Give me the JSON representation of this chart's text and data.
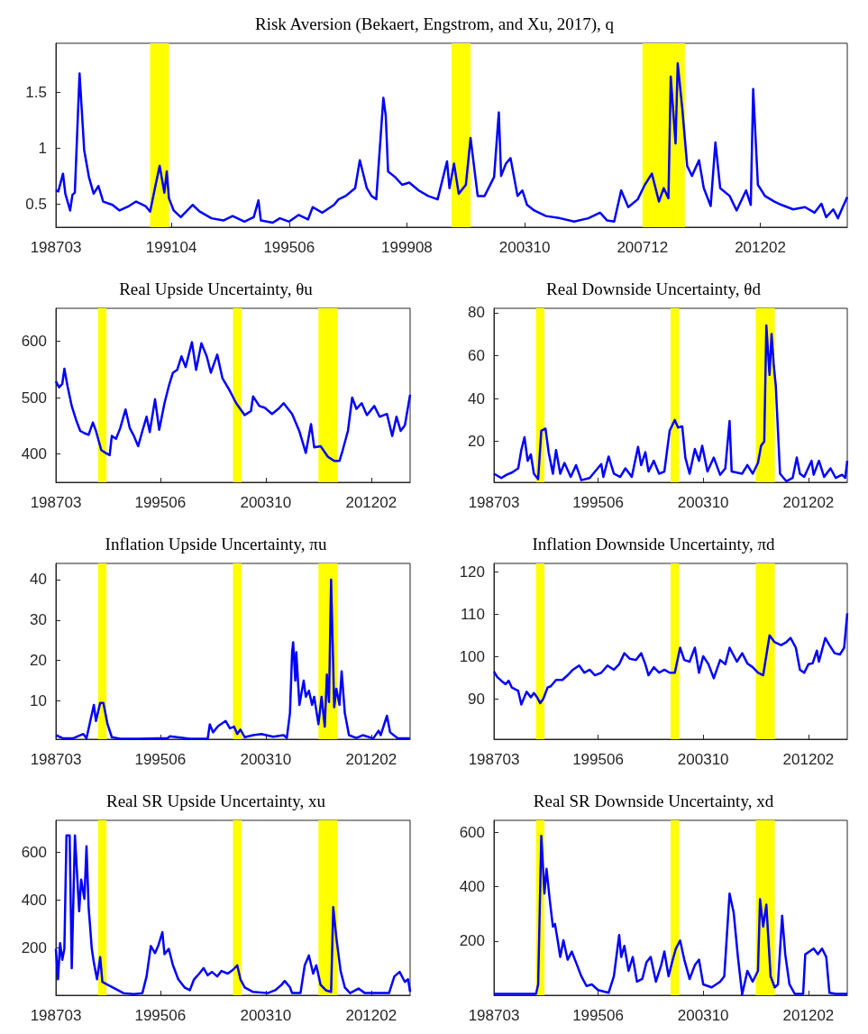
{
  "chart_data": [
    {
      "type": "line",
      "title": "Risk Aversion (Bekaert, Engstrom, and Xu, 2017), q",
      "color": "#0000ff",
      "x": [
        "1987-03",
        "1987-04",
        "1987-06",
        "1987-07",
        "1987-09",
        "1987-10",
        "1987-11",
        "1988-01",
        "1988-03",
        "1988-05",
        "1988-07",
        "1988-09",
        "1988-11",
        "1989-03",
        "1989-06",
        "1989-10",
        "1990-01",
        "1990-05",
        "1990-07",
        "1990-09",
        "1990-11",
        "1991-01",
        "1991-02",
        "1991-03",
        "1991-05",
        "1991-08",
        "1992-01",
        "1992-04",
        "1992-09",
        "1993-02",
        "1993-06",
        "1993-11",
        "1994-03",
        "1994-05",
        "1994-06",
        "1994-11",
        "1995-02",
        "1995-06",
        "1995-10",
        "1996-02",
        "1996-04",
        "1996-08",
        "1997-01",
        "1997-03",
        "1997-06",
        "1997-10",
        "1997-12",
        "1998-03",
        "1998-05",
        "1998-07",
        "1998-10",
        "1998-11",
        "1998-12",
        "1999-03",
        "1999-06",
        "1999-09",
        "2000-01",
        "2000-05",
        "2000-09",
        "2001-01",
        "2001-02",
        "2001-04",
        "2001-06",
        "2001-09",
        "2001-11",
        "2002-02",
        "2002-05",
        "2002-09",
        "2002-11",
        "2002-12",
        "2003-02",
        "2003-04",
        "2003-07",
        "2003-09",
        "2003-11",
        "2004-02",
        "2004-07",
        "2005-01",
        "2005-07",
        "2006-01",
        "2006-06",
        "2006-09",
        "2006-12",
        "2007-03",
        "2007-06",
        "2007-10",
        "2008-01",
        "2008-04",
        "2008-07",
        "2008-09",
        "2008-11",
        "2008-12",
        "2009-02",
        "2009-03",
        "2009-05",
        "2009-07",
        "2009-09",
        "2009-12",
        "2010-02",
        "2010-05",
        "2010-07",
        "2010-09",
        "2011-01",
        "2011-04",
        "2011-08",
        "2011-10",
        "2011-11",
        "2012-01",
        "2012-04",
        "2012-08",
        "2012-11",
        "2013-04",
        "2013-09",
        "2014-01",
        "2014-04",
        "2014-06",
        "2014-09",
        "2014-11",
        "2015-01",
        "2015-03"
      ],
      "values": [
        0.62,
        0.61,
        0.77,
        0.59,
        0.44,
        0.58,
        0.6,
        1.67,
        0.98,
        0.74,
        0.59,
        0.66,
        0.52,
        0.49,
        0.44,
        0.48,
        0.52,
        0.48,
        0.43,
        0.64,
        0.84,
        0.6,
        0.79,
        0.55,
        0.44,
        0.38,
        0.49,
        0.43,
        0.37,
        0.35,
        0.39,
        0.34,
        0.38,
        0.53,
        0.35,
        0.33,
        0.37,
        0.34,
        0.4,
        0.36,
        0.47,
        0.42,
        0.49,
        0.54,
        0.57,
        0.64,
        0.89,
        0.64,
        0.57,
        0.54,
        1.45,
        1.29,
        0.79,
        0.74,
        0.67,
        0.69,
        0.62,
        0.57,
        0.54,
        0.88,
        0.64,
        0.86,
        0.59,
        0.67,
        1.09,
        0.57,
        0.57,
        0.74,
        1.32,
        0.75,
        0.86,
        0.91,
        0.57,
        0.62,
        0.49,
        0.44,
        0.39,
        0.37,
        0.34,
        0.37,
        0.42,
        0.35,
        0.34,
        0.62,
        0.47,
        0.54,
        0.67,
        0.77,
        0.52,
        0.64,
        0.55,
        1.64,
        1.04,
        1.76,
        1.34,
        0.84,
        0.75,
        0.89,
        0.64,
        0.48,
        1.05,
        0.64,
        0.57,
        0.44,
        0.62,
        0.49,
        1.53,
        0.67,
        0.57,
        0.52,
        0.49,
        0.45,
        0.47,
        0.42,
        0.5,
        0.38,
        0.45,
        0.37,
        0.47,
        0.56
      ],
      "xlim": [
        "1987-03",
        "2015-03"
      ],
      "xticks": [
        {
          "value": "1987-03",
          "label": "198703"
        },
        {
          "value": "1991-04",
          "label": "199104"
        },
        {
          "value": "1995-06",
          "label": "199506"
        },
        {
          "value": "1999-08",
          "label": "199908"
        },
        {
          "value": "2003-10",
          "label": "200310"
        },
        {
          "value": "2007-12",
          "label": "200712"
        },
        {
          "value": "2012-02",
          "label": "201202"
        }
      ],
      "ylim": [
        0.29,
        1.94
      ],
      "yticks": [
        0.5,
        1,
        1.5
      ],
      "bands": [
        {
          "axis": "x",
          "from": "1990-07",
          "to": "1991-03",
          "color": "#ffff00"
        },
        {
          "axis": "x",
          "from": "2001-03",
          "to": "2001-11",
          "color": "#ffff00"
        },
        {
          "axis": "x",
          "from": "2007-12",
          "to": "2009-06",
          "color": "#ffff00"
        }
      ]
    },
    {
      "type": "line",
      "title": "Real Upside Uncertainty, θu",
      "color": "#0000ff",
      "x": [
        "1987-03",
        "1987-06",
        "1987-09",
        "1987-11",
        "1988-02",
        "1988-06",
        "1988-10",
        "1989-02",
        "1989-06",
        "1989-10",
        "1990-02",
        "1990-05",
        "1990-10",
        "1991-02",
        "1991-06",
        "1991-08",
        "1991-12",
        "1992-04",
        "1992-09",
        "1993-01",
        "1993-05",
        "1993-09",
        "1994-01",
        "1994-05",
        "1994-08",
        "1995-01",
        "1995-05",
        "1995-10",
        "1996-02",
        "1996-06",
        "1996-10",
        "1997-02",
        "1997-06",
        "1997-12",
        "1998-04",
        "1998-09",
        "1999-02",
        "1999-06",
        "1999-12",
        "2000-05",
        "2000-11",
        "2001-06",
        "2002-02",
        "2002-08",
        "2002-10",
        "2003-04",
        "2003-09",
        "2004-04",
        "2004-10",
        "2005-03",
        "2005-11",
        "2006-06",
        "2006-12",
        "2007-05",
        "2007-08",
        "2008-02",
        "2008-09",
        "2009-03",
        "2009-08",
        "2009-11",
        "2010-04",
        "2010-08",
        "2010-12",
        "2011-05",
        "2011-10",
        "2012-05",
        "2012-10",
        "2013-05",
        "2013-10",
        "2014-02",
        "2014-06",
        "2014-10",
        "2015-03"
      ],
      "values": [
        529,
        518,
        524,
        551,
        520,
        485,
        461,
        441,
        437,
        434,
        456,
        441,
        407,
        402,
        398,
        432,
        427,
        446,
        479,
        446,
        432,
        414,
        441,
        466,
        439,
        497,
        443,
        490,
        520,
        544,
        549,
        573,
        554,
        598,
        549,
        596,
        573,
        544,
        576,
        534,
        515,
        490,
        469,
        476,
        502,
        485,
        482,
        471,
        480,
        490,
        471,
        440,
        402,
        453,
        412,
        414,
        395,
        388,
        388,
        407,
        441,
        500,
        480,
        490,
        469,
        485,
        466,
        471,
        432,
        466,
        441,
        451,
        505
      ],
      "xlim": [
        "1987-03",
        "2015-03"
      ],
      "xticks": [
        {
          "value": "1987-03",
          "label": "198703"
        },
        {
          "value": "1995-06",
          "label": "199506"
        },
        {
          "value": "2003-10",
          "label": "200310"
        },
        {
          "value": "2012-02",
          "label": "201202"
        }
      ],
      "ylim": [
        350,
        658
      ],
      "yticks": [
        400,
        500,
        600
      ],
      "bands": [
        {
          "axis": "x",
          "from": "1990-07",
          "to": "1991-03",
          "color": "#ffff00"
        },
        {
          "axis": "x",
          "from": "2001-03",
          "to": "2001-11",
          "color": "#ffff00"
        },
        {
          "axis": "x",
          "from": "2007-12",
          "to": "2009-06",
          "color": "#ffff00"
        }
      ]
    },
    {
      "type": "line",
      "title": "Real Downside Uncertainty, θd",
      "color": "#0000ff",
      "x": [
        "1987-03",
        "1987-10",
        "1988-03",
        "1988-08",
        "1989-02",
        "1989-05",
        "1989-08",
        "1989-11",
        "1990-02",
        "1990-05",
        "1990-09",
        "1990-12",
        "1991-04",
        "1991-07",
        "1991-11",
        "1992-02",
        "1992-06",
        "1992-10",
        "1993-04",
        "1993-09",
        "1994-02",
        "1994-10",
        "1995-09",
        "1995-11",
        "1996-04",
        "1996-09",
        "1997-03",
        "1997-08",
        "1998-02",
        "1998-08",
        "1998-11",
        "1999-03",
        "1999-06",
        "1999-11",
        "2000-04",
        "2000-09",
        "2001-02",
        "2001-07",
        "2001-10",
        "2002-02",
        "2002-05",
        "2002-09",
        "2003-02",
        "2003-06",
        "2003-09",
        "2004-02",
        "2004-08",
        "2005-02",
        "2005-07",
        "2005-11",
        "2006-01",
        "2006-11",
        "2007-04",
        "2007-09",
        "2008-02",
        "2008-05",
        "2008-08",
        "2008-10",
        "2009-01",
        "2009-03",
        "2009-05",
        "2009-07",
        "2009-11",
        "2010-05",
        "2010-11",
        "2011-03",
        "2011-06",
        "2011-10",
        "2012-05",
        "2012-07",
        "2012-12",
        "2013-05",
        "2013-11",
        "2014-04",
        "2014-10",
        "2015-01",
        "2015-03"
      ],
      "values": [
        5,
        3,
        4.5,
        5.5,
        7.5,
        16,
        22,
        11,
        14,
        5,
        2.5,
        25,
        26,
        15,
        5,
        16,
        5,
        10,
        3.5,
        9,
        2,
        3,
        9.5,
        3.5,
        13,
        5,
        3.5,
        7.5,
        3.5,
        17.5,
        9,
        15,
        6,
        11,
        5,
        6,
        25,
        30,
        26.5,
        27,
        12.5,
        5,
        16.5,
        11,
        18,
        6,
        12.5,
        4.5,
        7.5,
        29.5,
        6,
        5,
        9,
        5,
        10,
        18,
        20,
        74,
        51,
        70,
        56,
        46,
        5,
        1.5,
        3,
        12.5,
        5,
        3.5,
        11,
        4.5,
        11,
        3.5,
        7.5,
        3,
        4.5,
        3,
        11
      ],
      "xlim": [
        "1987-03",
        "2015-03"
      ],
      "xticks": [
        {
          "value": "1987-03",
          "label": "198703"
        },
        {
          "value": "1995-06",
          "label": "199506"
        },
        {
          "value": "2003-10",
          "label": "200310"
        },
        {
          "value": "2012-02",
          "label": "201202"
        }
      ],
      "ylim": [
        1,
        82
      ],
      "yticks": [
        20,
        40,
        60,
        80
      ],
      "bands": [
        {
          "axis": "x",
          "from": "1990-07",
          "to": "1991-03",
          "color": "#ffff00"
        },
        {
          "axis": "x",
          "from": "2001-03",
          "to": "2001-11",
          "color": "#ffff00"
        },
        {
          "axis": "x",
          "from": "2007-12",
          "to": "2009-06",
          "color": "#ffff00"
        }
      ]
    },
    {
      "type": "line",
      "title": "Inflation Upside Uncertainty, πu",
      "color": "#0000ff",
      "x": [
        "1987-03",
        "1987-09",
        "1988-07",
        "1989-05",
        "1989-08",
        "1990-03",
        "1990-05",
        "1990-09",
        "1990-12",
        "1991-04",
        "1991-08",
        "1992-04",
        "1993-10",
        "1996-01",
        "1996-03",
        "1997-10",
        "1999-03",
        "1999-05",
        "1999-08",
        "2000-01",
        "2000-08",
        "2000-12",
        "2001-04",
        "2001-07",
        "2001-10",
        "2002-02",
        "2002-10",
        "2003-06",
        "2004-05",
        "2005-03",
        "2005-06",
        "2005-09",
        "2005-11",
        "2005-12",
        "2006-02",
        "2006-03",
        "2006-06",
        "2006-10",
        "2006-12",
        "2007-03",
        "2007-06",
        "2007-08",
        "2007-12",
        "2008-03",
        "2008-06",
        "2008-08",
        "2008-10",
        "2008-12",
        "2009-03",
        "2009-05",
        "2009-08",
        "2009-10",
        "2010-01",
        "2010-05",
        "2010-12",
        "2011-06",
        "2012-04",
        "2012-09",
        "2012-11",
        "2013-05",
        "2013-08",
        "2014-03",
        "2015-03"
      ],
      "values": [
        1.5,
        0.8,
        0.7,
        1.8,
        0.7,
        9,
        5,
        9.5,
        9.5,
        4.2,
        1,
        0.6,
        0.6,
        0.8,
        1.2,
        0.6,
        0.6,
        4.2,
        2.2,
        3.8,
        5,
        3.2,
        3.6,
        1.8,
        2.9,
        1,
        1.5,
        1.8,
        1.1,
        1.5,
        0.8,
        7,
        22,
        24.5,
        15,
        22,
        9,
        15,
        11,
        12.5,
        9,
        11,
        4.2,
        11,
        3.6,
        16.5,
        9.7,
        40,
        8.4,
        13,
        9,
        17.3,
        7,
        1.5,
        0.8,
        1.5,
        0.7,
        2.6,
        1.5,
        6.3,
        2.2,
        0.8,
        0.7
      ],
      "xlim": [
        "1987-03",
        "2015-03"
      ],
      "xticks": [
        {
          "value": "1987-03",
          "label": "198703"
        },
        {
          "value": "1995-06",
          "label": "199506"
        },
        {
          "value": "2003-10",
          "label": "200310"
        },
        {
          "value": "2012-02",
          "label": "201202"
        }
      ],
      "ylim": [
        0.5,
        44
      ],
      "yticks": [
        10,
        20,
        30,
        40
      ],
      "bands": [
        {
          "axis": "x",
          "from": "1990-07",
          "to": "1991-03",
          "color": "#ffff00"
        },
        {
          "axis": "x",
          "from": "2001-03",
          "to": "2001-11",
          "color": "#ffff00"
        },
        {
          "axis": "x",
          "from": "2007-12",
          "to": "2009-06",
          "color": "#ffff00"
        }
      ]
    },
    {
      "type": "line",
      "title": "Inflation Downside Uncertainty, πd",
      "color": "#0000ff",
      "x": [
        "1987-03",
        "1987-06",
        "1987-10",
        "1988-02",
        "1988-05",
        "1988-08",
        "1989-02",
        "1989-05",
        "1989-10",
        "1990-02",
        "1990-05",
        "1990-08",
        "1990-11",
        "1991-02",
        "1991-06",
        "1991-09",
        "1992-02",
        "1992-08",
        "1993-01",
        "1993-06",
        "1993-12",
        "1994-05",
        "1994-10",
        "1995-03",
        "1995-09",
        "1996-03",
        "1996-09",
        "1997-02",
        "1997-07",
        "1997-12",
        "1998-06",
        "1998-11",
        "1999-03",
        "1999-06",
        "1999-11",
        "2000-04",
        "2000-09",
        "2001-02",
        "2001-07",
        "2001-12",
        "2002-04",
        "2002-09",
        "2003-02",
        "2003-06",
        "2003-10",
        "2004-03",
        "2004-08",
        "2005-02",
        "2005-07",
        "2005-11",
        "2006-06",
        "2006-11",
        "2007-04",
        "2007-09",
        "2008-02",
        "2008-07",
        "2009-01",
        "2009-06",
        "2009-12",
        "2010-05",
        "2010-09",
        "2011-02",
        "2011-06",
        "2011-10",
        "2012-02",
        "2012-06",
        "2012-10",
        "2012-12",
        "2013-06",
        "2013-10",
        "2014-03",
        "2014-08",
        "2014-12",
        "2015-03"
      ],
      "values": [
        96.5,
        95.2,
        94.3,
        93.5,
        94.3,
        92.7,
        91.9,
        88.7,
        91.7,
        90.4,
        91.4,
        90.4,
        89,
        90.1,
        92.7,
        93,
        94.5,
        94.5,
        95.6,
        96.9,
        97.9,
        96.2,
        96.9,
        95.6,
        96.2,
        97.9,
        96.9,
        98.2,
        100.8,
        99.5,
        99.2,
        100.8,
        98.2,
        95.6,
        97.5,
        96.2,
        96.9,
        96.2,
        96.2,
        102.1,
        99.2,
        98.8,
        102.1,
        96.2,
        100.1,
        98.2,
        94.9,
        99.2,
        98.2,
        102.1,
        98.8,
        100.8,
        98.4,
        97.5,
        96.2,
        95.6,
        105,
        103.4,
        102.7,
        103.4,
        104.4,
        102.1,
        96.9,
        96.2,
        98.2,
        98.4,
        101.4,
        98.8,
        104.4,
        102.7,
        100.8,
        100.5,
        102.1,
        110.2
      ],
      "xlim": [
        "1987-03",
        "2015-03"
      ],
      "xticks": [
        {
          "value": "1987-03",
          "label": "198703"
        },
        {
          "value": "1995-06",
          "label": "199506"
        },
        {
          "value": "2003-10",
          "label": "200310"
        },
        {
          "value": "2012-02",
          "label": "201202"
        }
      ],
      "ylim": [
        80.5,
        122
      ],
      "yticks": [
        90,
        100,
        110,
        120
      ],
      "bands": [
        {
          "axis": "x",
          "from": "1990-07",
          "to": "1991-03",
          "color": "#ffff00"
        },
        {
          "axis": "x",
          "from": "2001-03",
          "to": "2001-11",
          "color": "#ffff00"
        },
        {
          "axis": "x",
          "from": "2007-12",
          "to": "2009-06",
          "color": "#ffff00"
        }
      ]
    },
    {
      "type": "line",
      "title": "Real SR Upside Uncertainty, xu",
      "color": "#0000ff",
      "x": [
        "1987-03",
        "1987-05",
        "1987-07",
        "1987-09",
        "1987-11",
        "1988-01",
        "1988-04",
        "1988-06",
        "1988-09",
        "1989-01",
        "1989-03",
        "1989-06",
        "1989-08",
        "1989-10",
        "1990-01",
        "1990-03",
        "1990-06",
        "1990-09",
        "1990-11",
        "1991-04",
        "1991-11",
        "1992-07",
        "1993-05",
        "1994-01",
        "1994-05",
        "1994-09",
        "1995-01",
        "1995-04",
        "1995-08",
        "1995-10",
        "1996-02",
        "1996-06",
        "1996-11",
        "1997-05",
        "1997-10",
        "1998-02",
        "1998-07",
        "1998-11",
        "1999-03",
        "1999-07",
        "1999-12",
        "2000-04",
        "2000-10",
        "2001-03",
        "2001-07",
        "2001-10",
        "2002-02",
        "2002-10",
        "2003-12",
        "2004-07",
        "2005-01",
        "2005-04",
        "2005-09",
        "2005-11",
        "2006-07",
        "2006-11",
        "2007-03",
        "2007-07",
        "2007-10",
        "2008-02",
        "2008-07",
        "2008-12",
        "2009-02",
        "2009-05",
        "2009-09",
        "2010-01",
        "2010-06",
        "2011-02",
        "2011-08",
        "2013-07",
        "2013-12",
        "2014-05",
        "2014-10",
        "2015-01",
        "2015-03"
      ],
      "values": [
        195,
        67,
        219,
        149,
        195,
        672,
        672,
        114,
        672,
        353,
        486,
        405,
        626,
        370,
        195,
        137,
        67,
        160,
        56,
        44,
        28,
        9,
        5,
        9,
        79,
        207,
        177,
        207,
        265,
        172,
        195,
        126,
        67,
        33,
        21,
        67,
        91,
        114,
        84,
        98,
        79,
        102,
        91,
        107,
        126,
        67,
        33,
        14,
        9,
        21,
        44,
        60,
        33,
        9,
        9,
        126,
        167,
        91,
        126,
        44,
        21,
        14,
        370,
        242,
        102,
        33,
        9,
        28,
        9,
        9,
        79,
        98,
        56,
        67,
        14
      ],
      "xlim": [
        "1987-03",
        "2015-03"
      ],
      "xticks": [
        {
          "value": "1987-03",
          "label": "198703"
        },
        {
          "value": "1995-06",
          "label": "199506"
        },
        {
          "value": "2003-10",
          "label": "200310"
        },
        {
          "value": "2012-02",
          "label": "201202"
        }
      ],
      "ylim": [
        0,
        735
      ],
      "yticks": [
        200,
        400,
        600
      ],
      "bands": [
        {
          "axis": "x",
          "from": "1990-07",
          "to": "1991-03",
          "color": "#ffff00"
        },
        {
          "axis": "x",
          "from": "2001-03",
          "to": "2001-11",
          "color": "#ffff00"
        },
        {
          "axis": "x",
          "from": "2007-12",
          "to": "2009-06",
          "color": "#ffff00"
        }
      ]
    },
    {
      "type": "line",
      "title": "Real SR Downside Uncertainty, xd",
      "color": "#0000ff",
      "x": [
        "1987-03",
        "1988-11",
        "1990-07",
        "1990-09",
        "1990-12",
        "1991-03",
        "1991-05",
        "1991-08",
        "1991-11",
        "1992-01",
        "1992-04",
        "1992-06",
        "1992-09",
        "1993-01",
        "1993-05",
        "1993-09",
        "1994-02",
        "1994-07",
        "1994-12",
        "1995-06",
        "1996-04",
        "1996-09",
        "1997-02",
        "1997-04",
        "1997-07",
        "1997-11",
        "1998-03",
        "1998-07",
        "1998-12",
        "1999-04",
        "1999-08",
        "2000-01",
        "2000-06",
        "2000-09",
        "2001-01",
        "2001-05",
        "2001-08",
        "2001-12",
        "2002-04",
        "2002-09",
        "2003-02",
        "2003-06",
        "2003-10",
        "2004-06",
        "2005-02",
        "2005-06",
        "2005-11",
        "2006-03",
        "2006-07",
        "2006-11",
        "2007-04",
        "2007-09",
        "2008-02",
        "2008-04",
        "2008-07",
        "2008-10",
        "2009-02",
        "2009-06",
        "2009-09",
        "2010-01",
        "2010-04",
        "2010-08",
        "2011-01",
        "2011-09",
        "2011-11",
        "2012-03",
        "2012-07",
        "2012-11",
        "2013-03",
        "2013-07",
        "2013-10",
        "2014-04",
        "2015-03"
      ],
      "values": [
        5,
        5,
        5,
        40,
        588,
        375,
        466,
        354,
        253,
        263,
        192,
        141,
        203,
        131,
        161,
        121,
        70,
        34,
        40,
        19,
        9,
        70,
        222,
        141,
        182,
        90,
        141,
        50,
        60,
        121,
        141,
        50,
        111,
        161,
        70,
        131,
        172,
        202,
        131,
        60,
        111,
        131,
        40,
        29,
        50,
        70,
        375,
        304,
        141,
        3,
        90,
        50,
        90,
        354,
        253,
        334,
        70,
        29,
        40,
        293,
        151,
        40,
        5,
        5,
        151,
        161,
        172,
        151,
        172,
        141,
        9,
        5,
        5
      ],
      "xlim": [
        "1987-03",
        "2015-03"
      ],
      "xticks": [
        {
          "value": "1987-03",
          "label": "198703"
        },
        {
          "value": "1995-06",
          "label": "199506"
        },
        {
          "value": "2003-10",
          "label": "200310"
        },
        {
          "value": "2012-02",
          "label": "201202"
        }
      ],
      "ylim": [
        0,
        645
      ],
      "yticks": [
        200,
        400,
        600
      ],
      "bands": [
        {
          "axis": "x",
          "from": "1990-07",
          "to": "1991-03",
          "color": "#ffff00"
        },
        {
          "axis": "x",
          "from": "2001-03",
          "to": "2001-11",
          "color": "#ffff00"
        },
        {
          "axis": "x",
          "from": "2007-12",
          "to": "2009-06",
          "color": "#ffff00"
        }
      ]
    }
  ]
}
